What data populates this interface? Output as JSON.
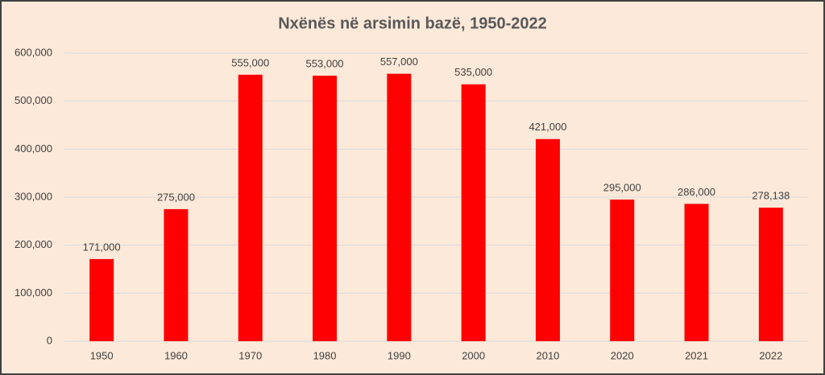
{
  "chart_data": {
    "type": "bar",
    "title": "Nxënës në arsimin bazë, 1950-2022",
    "categories": [
      "1950",
      "1960",
      "1970",
      "1980",
      "1990",
      "2000",
      "2010",
      "2020",
      "2021",
      "2022"
    ],
    "values": [
      171000,
      275000,
      555000,
      553000,
      557000,
      535000,
      421000,
      295000,
      286000,
      278138
    ],
    "value_labels": [
      "171,000",
      "275,000",
      "555,000",
      "553,000",
      "557,000",
      "535,000",
      "421,000",
      "295,000",
      "286,000",
      "278,138"
    ],
    "color": "#ff0000",
    "ylim": [
      0,
      600000
    ],
    "yticks": [
      0,
      {
        "value": 100000,
        "label": "100,000"
      },
      {
        "value": 200000,
        "label": "200,000"
      },
      {
        "value": 300000,
        "label": "300,000"
      },
      {
        "value": 400000,
        "label": "400,000"
      },
      {
        "value": 500000,
        "label": "500,000"
      },
      {
        "value": 600000,
        "label": "600,000"
      }
    ],
    "grid": true
  }
}
